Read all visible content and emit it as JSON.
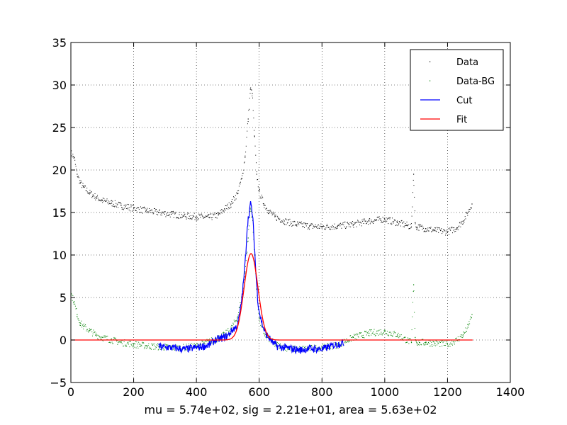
{
  "chart_data": {
    "type": "line",
    "title": "",
    "xlabel": "mu = 5.74e+02, sig = 2.21e+01, area = 5.63e+02",
    "ylabel": "",
    "xlim": [
      0,
      1400
    ],
    "ylim": [
      -5,
      35
    ],
    "x_ticks": [
      0,
      200,
      400,
      600,
      800,
      1000,
      1200,
      1400
    ],
    "y_ticks": [
      -5,
      0,
      5,
      10,
      15,
      20,
      25,
      30,
      35
    ],
    "grid": true,
    "legend_position": "top-right",
    "fit_params": {
      "mu": 574,
      "sig": 22.1,
      "area": 563
    },
    "series": [
      {
        "name": "Data",
        "style": "points",
        "color": "#000000",
        "x": [
          0,
          10,
          20,
          30,
          40,
          60,
          80,
          100,
          130,
          160,
          200,
          240,
          280,
          320,
          360,
          400,
          440,
          470,
          490,
          510,
          530,
          545,
          555,
          565,
          572,
          578,
          585,
          592,
          600,
          615,
          630,
          650,
          680,
          720,
          760,
          800,
          850,
          900,
          950,
          1000,
          1040,
          1070,
          1085,
          1092,
          1097,
          1102,
          1110,
          1130,
          1160,
          1200,
          1230,
          1250,
          1265,
          1278
        ],
        "y": [
          22,
          21.5,
          19.5,
          18.5,
          18,
          17.3,
          16.8,
          16.4,
          16.1,
          15.8,
          15.5,
          15.2,
          15,
          14.8,
          14.6,
          14.5,
          14.4,
          14.7,
          15.4,
          16,
          17.2,
          19,
          21.5,
          26,
          29.5,
          29,
          24,
          19.5,
          17.5,
          16,
          15.2,
          14.5,
          14,
          13.6,
          13.4,
          13.3,
          13.4,
          13.6,
          14,
          14.2,
          13.8,
          13.5,
          13.3,
          19.5,
          13.8,
          13.2,
          13.3,
          13.1,
          12.9,
          12.7,
          13.2,
          14,
          15,
          16
        ]
      },
      {
        "name": "Data-BG",
        "style": "points",
        "color": "#008000",
        "x": [
          0,
          10,
          20,
          30,
          40,
          60,
          80,
          100,
          130,
          160,
          200,
          240,
          280,
          320,
          360,
          400,
          440,
          470,
          490,
          510,
          530,
          545,
          555,
          565,
          572,
          578,
          585,
          592,
          600,
          615,
          630,
          650,
          680,
          720,
          760,
          800,
          850,
          900,
          950,
          1000,
          1040,
          1070,
          1085,
          1092,
          1097,
          1102,
          1110,
          1130,
          1160,
          1200,
          1230,
          1250,
          1265,
          1278
        ],
        "y": [
          5.5,
          4.5,
          3,
          2,
          1.6,
          1.1,
          0.6,
          0.3,
          0,
          -0.3,
          -0.5,
          -0.7,
          -0.8,
          -0.9,
          -0.9,
          -0.7,
          -0.2,
          0.2,
          0.6,
          1.3,
          2.6,
          5,
          8,
          12,
          15.5,
          14.5,
          10,
          6,
          2.5,
          0.8,
          0.2,
          -0.5,
          -0.9,
          -1.1,
          -1,
          -0.9,
          -0.6,
          0.3,
          0.8,
          1,
          0.6,
          0,
          -0.3,
          6.5,
          0.3,
          -0.3,
          -0.3,
          -0.3,
          -0.4,
          -0.5,
          0,
          0.6,
          1.5,
          3
        ]
      },
      {
        "name": "Cut",
        "style": "line",
        "color": "#0000ff",
        "x": [
          280,
          320,
          360,
          400,
          440,
          460,
          480,
          500,
          515,
          530,
          540,
          548,
          556,
          562,
          568,
          572,
          576,
          580,
          585,
          590,
          596,
          602,
          610,
          620,
          630,
          645,
          660,
          680,
          700,
          730,
          760,
          800,
          840,
          870
        ],
        "y": [
          -0.8,
          -0.9,
          -1.1,
          -0.9,
          -0.6,
          0,
          0.2,
          0.5,
          1.2,
          1.6,
          3.5,
          6,
          9.5,
          13.5,
          15,
          16,
          15.5,
          14,
          11,
          7.5,
          4.5,
          3,
          1.8,
          0.8,
          0.3,
          -0.4,
          -0.8,
          -0.9,
          -1,
          -1.2,
          -1,
          -1.1,
          -0.6,
          -0.3
        ]
      },
      {
        "name": "Fit",
        "style": "line",
        "color": "#ff0000",
        "gaussian": {
          "mu": 574,
          "sig": 22.1,
          "area": 563
        },
        "x_range": [
          0,
          1280
        ]
      }
    ]
  }
}
